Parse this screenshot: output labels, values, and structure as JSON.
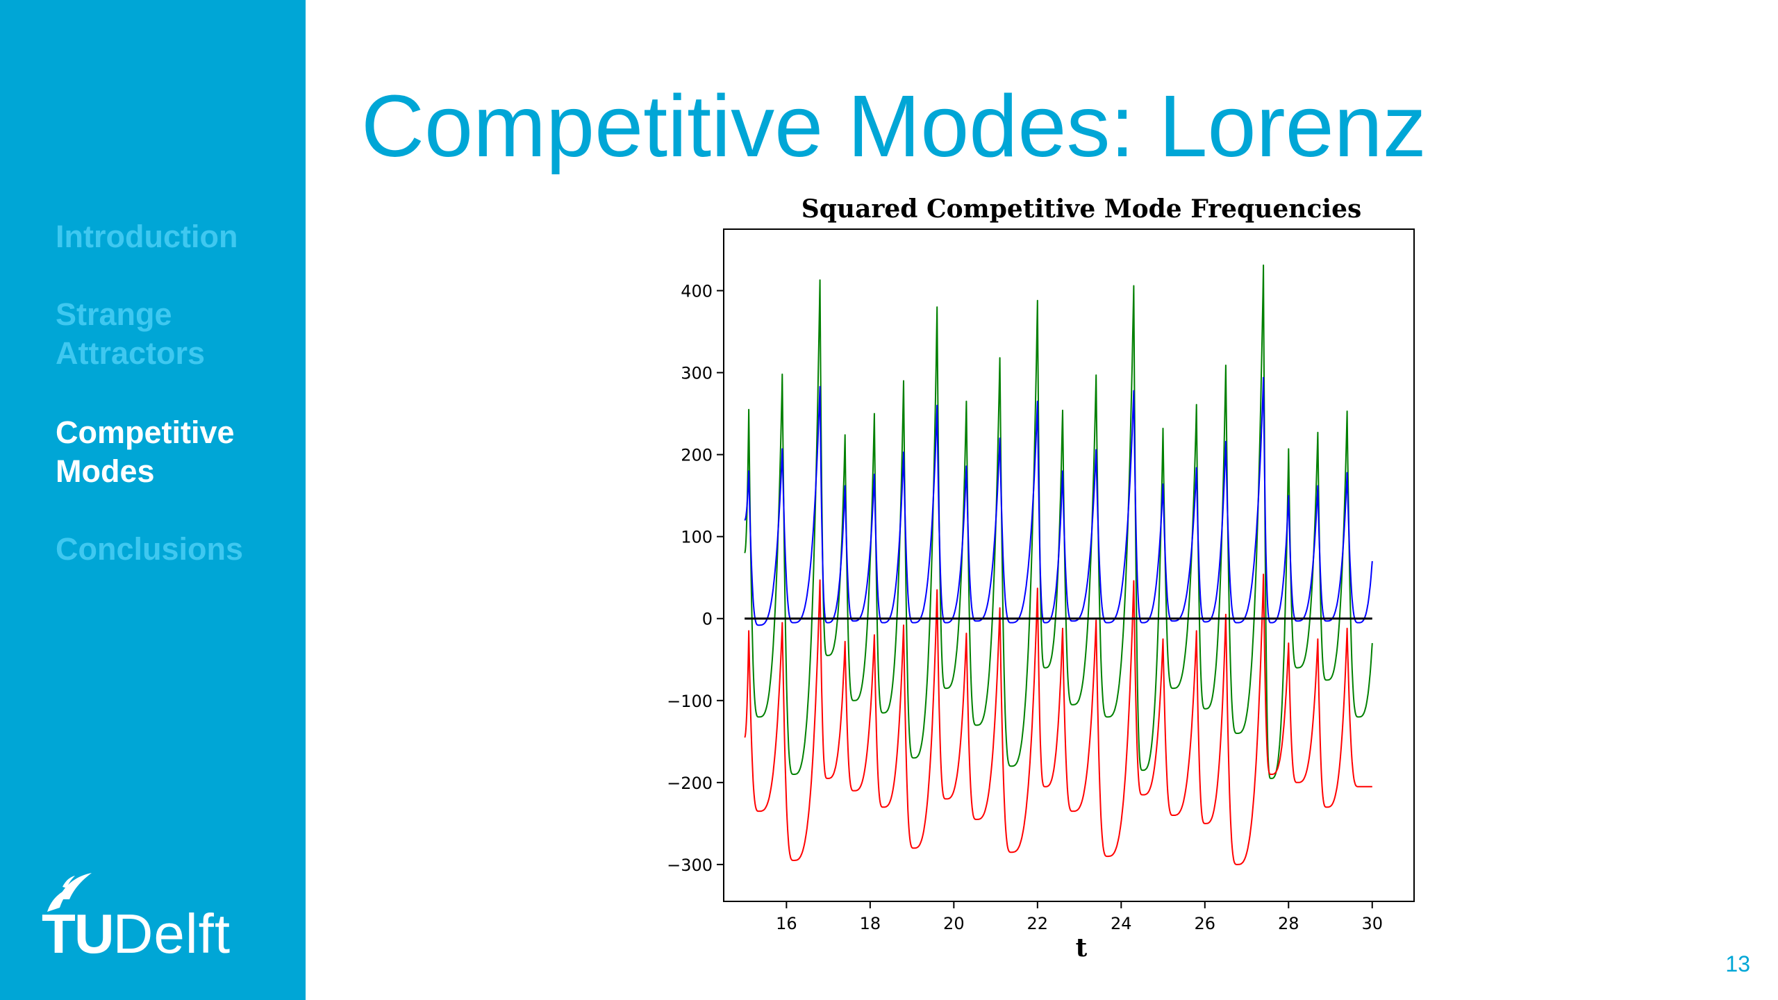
{
  "slide": {
    "title": "Competitive Modes: Lorenz",
    "page_number": "13"
  },
  "sidebar": {
    "items": [
      {
        "label_lines": [
          "Introduction"
        ],
        "active": false
      },
      {
        "label_lines": [
          "Strange",
          "Attractors"
        ],
        "active": false
      },
      {
        "label_lines": [
          "Competitive",
          "Modes"
        ],
        "active": true
      },
      {
        "label_lines": [
          "Conclusions"
        ],
        "active": false
      }
    ],
    "logo": {
      "tu": "TU",
      "rest": "Delft"
    }
  },
  "colors": {
    "brand": "#00a6d6",
    "nav_inactive": "#3fc8f0",
    "green": "#008000",
    "blue": "#0000ff",
    "red": "#ff0000",
    "black": "#000000"
  },
  "chart_data": {
    "type": "line",
    "title": "Squared Competitive Mode Frequencies",
    "xlabel": "t",
    "ylabel": "",
    "xlim": [
      14.5,
      31.0
    ],
    "ylim": [
      -345,
      475
    ],
    "xticks": [
      16,
      18,
      20,
      22,
      24,
      26,
      28,
      30
    ],
    "yticks": [
      -300,
      -200,
      -100,
      0,
      100,
      200,
      300,
      400
    ],
    "xtick_labels": [
      "16",
      "18",
      "20",
      "22",
      "24",
      "26",
      "28",
      "30"
    ],
    "ytick_labels": [
      "−300",
      "−200",
      "−100",
      "0",
      "100",
      "200",
      "300",
      "400"
    ],
    "grid": false,
    "legend": "none",
    "x_range": [
      15.0,
      30.0
    ],
    "peaks": {
      "t": [
        15.1,
        15.9,
        16.8,
        17.4,
        18.1,
        18.8,
        19.6,
        20.3,
        21.1,
        22.0,
        22.6,
        23.4,
        24.3,
        25.0,
        25.8,
        26.5,
        27.4,
        28.0,
        28.7,
        29.4
      ],
      "green": [
        255,
        298,
        413,
        224,
        250,
        290,
        380,
        265,
        318,
        388,
        254,
        297,
        406,
        232,
        261,
        309,
        431,
        207,
        227,
        253
      ],
      "blue": [
        180,
        207,
        283,
        162,
        176,
        203,
        260,
        186,
        220,
        265,
        180,
        206,
        278,
        164,
        184,
        216,
        294,
        150,
        162,
        178
      ],
      "red": [
        -15,
        -5,
        47,
        -28,
        -20,
        -8,
        35,
        -18,
        13,
        37,
        -12,
        -2,
        46,
        -25,
        -15,
        5,
        54,
        -30,
        -25,
        -12
      ]
    },
    "troughs": {
      "green": [
        -120,
        -190,
        -45,
        -100,
        -115,
        -170,
        -85,
        -130,
        -180,
        -60,
        -105,
        -120,
        -185,
        -85,
        -110,
        -140,
        -195,
        -60,
        -75,
        -120
      ],
      "blue": [
        -8,
        -5,
        -5,
        -3,
        -5,
        -5,
        -5,
        -3,
        -5,
        -5,
        -3,
        -5,
        -5,
        -3,
        -4,
        -5,
        -5,
        -3,
        -3,
        -5
      ],
      "red": [
        -235,
        -295,
        -195,
        -210,
        -230,
        -280,
        -220,
        -245,
        -285,
        -205,
        -235,
        -290,
        -215,
        -240,
        -250,
        -300,
        -190,
        -200,
        -230,
        -205
      ]
    },
    "start": {
      "green": 80,
      "blue": 120,
      "red": -145
    },
    "end": {
      "t": 30.0,
      "green": -30,
      "blue": 70,
      "red": -205
    },
    "series": [
      {
        "color": "#008000"
      },
      {
        "color": "#0000ff"
      },
      {
        "color": "#ff0000"
      },
      {
        "color": "#000000",
        "constant": 0
      }
    ]
  }
}
